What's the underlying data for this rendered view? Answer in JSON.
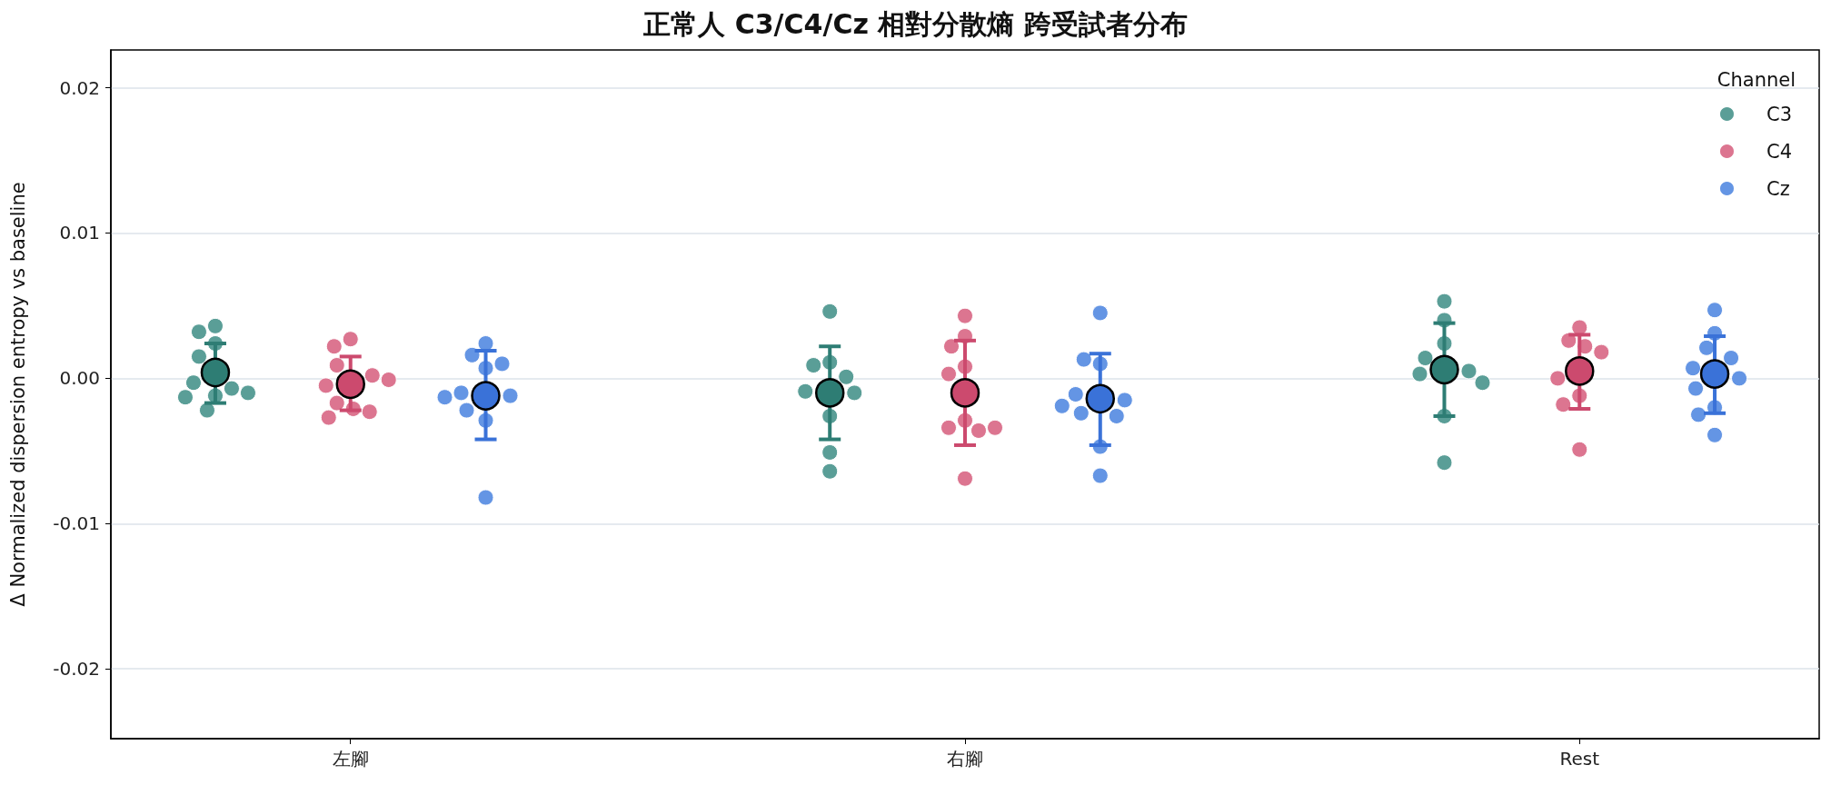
{
  "chart_data": {
    "type": "scatter",
    "title": "正常人 C3/C4/Cz 相對分散熵 跨受試者分布",
    "ylabel": "Δ Normalized dispersion entropy vs baseline",
    "legend_title": "Channel",
    "legend": "top right",
    "grid": "y",
    "marker": "circle",
    "categories": [
      "左腳",
      "右腳",
      "Rest"
    ],
    "ylim": [
      -0.0248,
      0.0226
    ],
    "yticks": [
      -0.02,
      -0.01,
      {
        "value": 0,
        "label": "0.00"
      },
      0.01,
      0.02
    ],
    "series": [
      {
        "name": "C3",
        "color": "#5a9e97",
        "x": [
          "左腳",
          "左腳",
          "左腳",
          "左腳",
          "左腳",
          "左腳",
          "左腳",
          "左腳",
          "左腳",
          "左腳",
          "右腳",
          "右腳",
          "右腳",
          "右腳",
          "右腳",
          "右腳",
          "右腳",
          "右腳",
          "右腳",
          "Rest",
          "Rest",
          "Rest",
          "Rest",
          "Rest",
          "Rest",
          "Rest",
          "Rest",
          "Rest"
        ],
        "values": [
          0.0036,
          0.0032,
          0.0024,
          0.0015,
          -0.0003,
          -0.0007,
          -0.0012,
          -0.001,
          -0.0013,
          -0.0022,
          0.0046,
          0.0011,
          0.0009,
          0.0001,
          -0.0009,
          -0.001,
          -0.0026,
          -0.0051,
          -0.0064,
          0.0053,
          0.004,
          0.0024,
          0.0014,
          0.0005,
          0.0003,
          -0.0003,
          -0.0026,
          -0.0058
        ]
      },
      {
        "name": "C4",
        "color": "#dc7590",
        "x": [
          "左腳",
          "左腳",
          "左腳",
          "左腳",
          "左腳",
          "左腳",
          "左腳",
          "左腳",
          "左腳",
          "左腳",
          "右腳",
          "右腳",
          "右腳",
          "右腳",
          "右腳",
          "右腳",
          "右腳",
          "右腳",
          "右腳",
          "右腳",
          "Rest",
          "Rest",
          "Rest",
          "Rest",
          "Rest",
          "Rest",
          "Rest",
          "Rest"
        ],
        "values": [
          0.0027,
          0.0022,
          0.0009,
          0.0002,
          -0.0005,
          -0.0001,
          -0.0017,
          -0.0021,
          -0.0023,
          -0.0027,
          0.0043,
          0.0029,
          0.0022,
          0.0008,
          0.0003,
          -0.0029,
          -0.0034,
          -0.0036,
          -0.0034,
          -0.0069,
          0.0035,
          0.0026,
          0.0022,
          0.0018,
          0.0,
          -0.0012,
          -0.0018,
          -0.0049
        ]
      },
      {
        "name": "Cz",
        "color": "#6495e4",
        "x": [
          "左腳",
          "左腳",
          "左腳",
          "左腳",
          "左腳",
          "左腳",
          "左腳",
          "左腳",
          "左腳",
          "左腳",
          "右腳",
          "右腳",
          "右腳",
          "右腳",
          "右腳",
          "右腳",
          "右腳",
          "右腳",
          "右腳",
          "右腳",
          "Rest",
          "Rest",
          "Rest",
          "Rest",
          "Rest",
          "Rest",
          "Rest",
          "Rest",
          "Rest",
          "Rest"
        ],
        "values": [
          0.0024,
          0.0016,
          0.0007,
          0.001,
          -0.001,
          -0.0012,
          -0.0013,
          -0.0022,
          -0.0029,
          -0.0082,
          0.0045,
          0.001,
          0.0013,
          -0.0011,
          -0.0015,
          -0.0019,
          -0.0024,
          -0.0026,
          -0.0047,
          -0.0067,
          0.0047,
          0.0031,
          0.0021,
          0.0014,
          0.0007,
          0.0,
          -0.0007,
          -0.002,
          -0.0025,
          -0.0039
        ]
      },
      {
        "color": "#2e7d74",
        "x": [
          "左腳",
          "右腳",
          "Rest"
        ],
        "values": [
          0.0004,
          -0.001,
          0.0006
        ],
        "errors": [
          [
            -0.0017,
            0.0024
          ],
          [
            -0.0042,
            0.0022
          ],
          [
            -0.0026,
            0.0038
          ]
        ]
      },
      {
        "color": "#cc4a6e",
        "x": [
          "左腳",
          "右腳",
          "Rest"
        ],
        "values": [
          -0.0004,
          -0.001,
          0.0005
        ],
        "errors": [
          [
            -0.0022,
            0.0015
          ],
          [
            -0.0046,
            0.0026
          ],
          [
            -0.0021,
            0.003
          ]
        ]
      },
      {
        "color": "#3a72d8",
        "x": [
          "左腳",
          "右腳",
          "Rest"
        ],
        "values": [
          -0.0012,
          -0.0014,
          0.0003
        ],
        "errors": [
          [
            -0.0042,
            0.0019
          ],
          [
            -0.0046,
            0.0017
          ],
          [
            -0.0024,
            0.0029
          ]
        ]
      }
    ]
  }
}
